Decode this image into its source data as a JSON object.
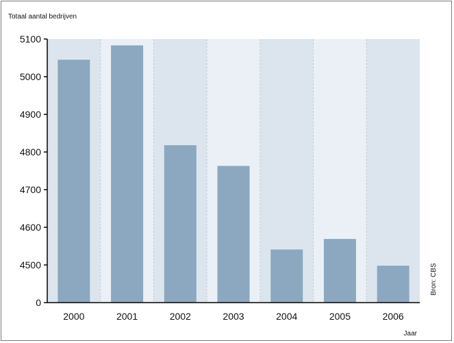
{
  "chart_data": {
    "type": "bar",
    "ylabel": "Totaal aantal bedrijven",
    "xlabel": "Jaar",
    "source": "Bron: CBS",
    "categories": [
      "2000",
      "2001",
      "2002",
      "2003",
      "2004",
      "2005",
      "2006"
    ],
    "values": [
      5045,
      5083,
      4818,
      4763,
      4541,
      4569,
      4498
    ],
    "y_axis_break": true,
    "ylim": [
      4430,
      5100
    ],
    "yticks": [
      "0",
      "4500",
      "4600",
      "4700",
      "4800",
      "4900",
      "5000",
      "5100"
    ],
    "grid": "vertical dashed separators",
    "colors": {
      "bar": "#8ba8c0",
      "band_dark": "#dce5ed",
      "band_light": "#eaf0f5"
    }
  }
}
